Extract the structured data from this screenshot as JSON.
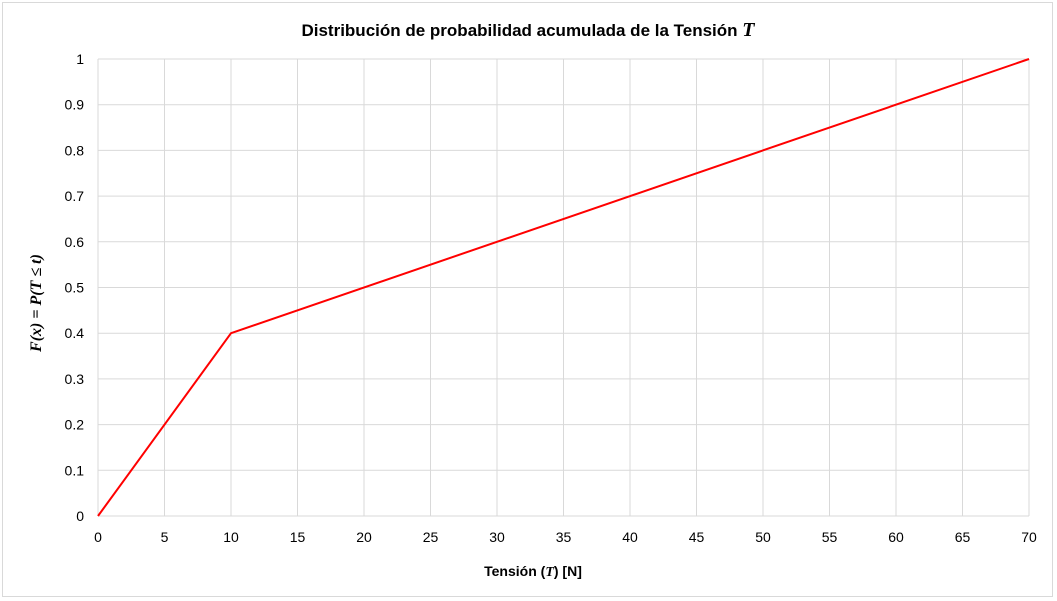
{
  "chart_data": {
    "type": "line",
    "title": "Distribución de probabilidad acumulada de la Tensión",
    "title_var": "T",
    "xlabel": "Tensión (",
    "xlabel_var": "T",
    "xlabel_tail": ") [N]",
    "ylabel": "F(x) = P(T ≤ t)",
    "xlim": [
      0,
      70
    ],
    "ylim": [
      0,
      1
    ],
    "xticks": [
      0,
      5,
      10,
      15,
      20,
      25,
      30,
      35,
      40,
      45,
      50,
      55,
      60,
      65,
      70
    ],
    "yticks": [
      0,
      0.1,
      0.2,
      0.3,
      0.4,
      0.5,
      0.6,
      0.7,
      0.8,
      0.9,
      1
    ],
    "ytick_labels": [
      "0",
      "0.1",
      "0.2",
      "0.3",
      "0.4",
      "0.5",
      "0.6",
      "0.7",
      "0.8",
      "0.9",
      "1"
    ],
    "grid": true,
    "series": [
      {
        "color": "#ff0000",
        "x": [
          0,
          10,
          70
        ],
        "y": [
          0,
          0.4,
          1
        ]
      }
    ]
  }
}
